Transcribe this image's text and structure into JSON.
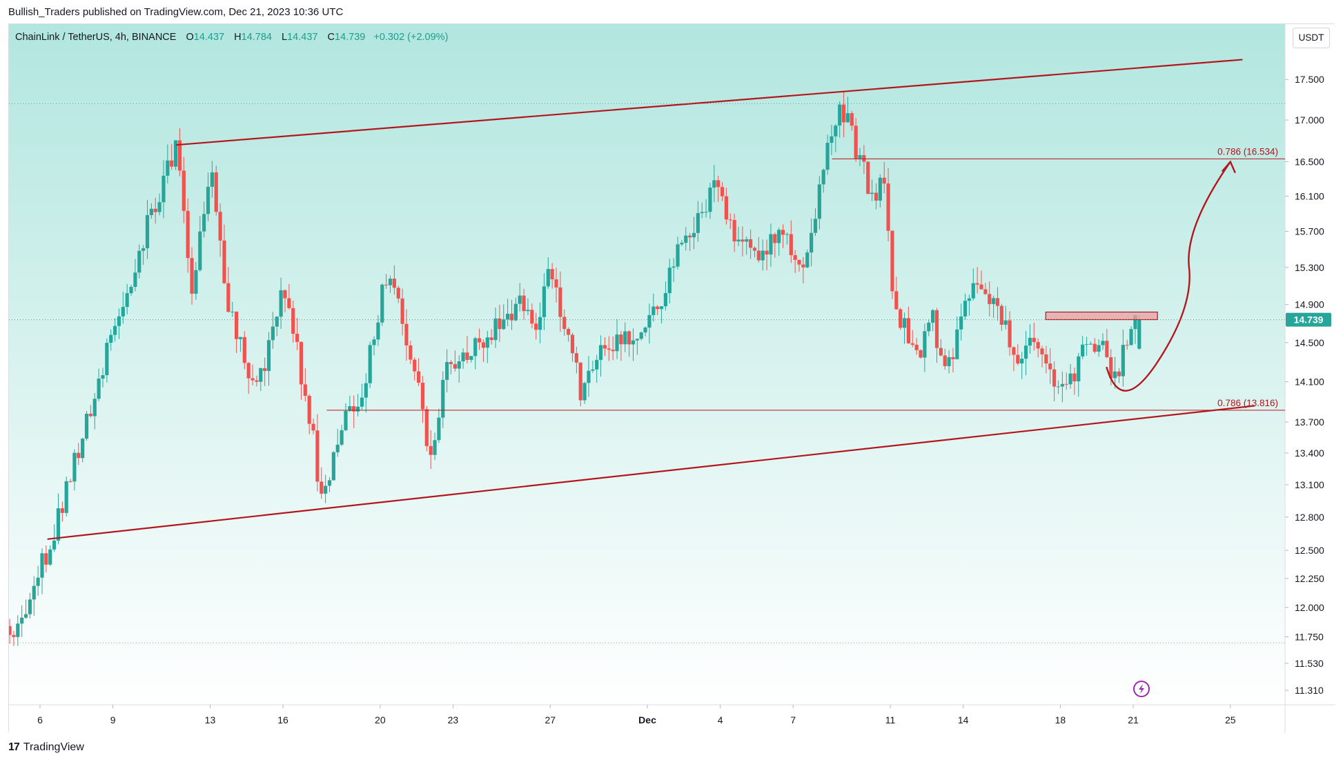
{
  "header": {
    "published_text": "Bullish_Traders published on TradingView.com, Dec 21, 2023 10:36 UTC"
  },
  "legend": {
    "symbol": "ChainLink / TetherUS, 4h, BINANCE",
    "open_label": "O",
    "open_value": "14.437",
    "high_label": "H",
    "high_value": "14.784",
    "low_label": "L",
    "low_value": "14.437",
    "close_label": "C",
    "close_value": "14.739",
    "change": "+0.302 (+2.09%)"
  },
  "currency_button": "USDT",
  "footer": {
    "logo_mark": "17",
    "logo_text": "TradingView"
  },
  "colors": {
    "up": "#26a69a",
    "down": "#ef5350",
    "drawing": "#b2161c",
    "bg_top": "#b2e6df",
    "bg_bottom": "#ffffff",
    "price_tag": "#26a69a"
  },
  "chart_data": {
    "type": "candlestick",
    "title": "ChainLink / TetherUS, 4h, BINANCE",
    "y_axis": {
      "unit": "USDT",
      "scale": "log",
      "ticks": [
        "17.500",
        "17.000",
        "16.500",
        "16.100",
        "15.700",
        "15.300",
        "14.900",
        "14.500",
        "14.100",
        "13.700",
        "13.400",
        "13.100",
        "12.800",
        "12.500",
        "12.250",
        "12.000",
        "11.750",
        "11.530",
        "11.310"
      ],
      "range": [
        11.25,
        18.1
      ]
    },
    "x_axis": {
      "range_days": [
        4.72,
        57.25
      ],
      "ticks": [
        {
          "day": 6,
          "label": "6"
        },
        {
          "day": 9,
          "label": "9"
        },
        {
          "day": 13,
          "label": "13"
        },
        {
          "day": 16,
          "label": "16"
        },
        {
          "day": 20,
          "label": "20"
        },
        {
          "day": 23,
          "label": "23"
        },
        {
          "day": 27,
          "label": "27"
        },
        {
          "day": 31,
          "label": "Dec"
        },
        {
          "day": 34,
          "label": "4"
        },
        {
          "day": 37,
          "label": "7"
        },
        {
          "day": 41,
          "label": "11"
        },
        {
          "day": 44,
          "label": "14"
        },
        {
          "day": 48,
          "label": "18"
        },
        {
          "day": 51,
          "label": "21"
        },
        {
          "day": 55,
          "label": "25"
        }
      ],
      "note": "day index counted from Nov 0 (Dec 1 = day 31)"
    },
    "anchors": [
      {
        "day": 4.75,
        "price": 11.7,
        "note": "start low"
      },
      {
        "day": 6.5,
        "price": 12.6
      },
      {
        "day": 11.6,
        "price": 16.7,
        "note": "Nov 11 high"
      },
      {
        "day": 12.3,
        "price": 15.0
      },
      {
        "day": 13.0,
        "price": 16.4
      },
      {
        "day": 13.7,
        "price": 15.0
      },
      {
        "day": 14.7,
        "price": 14.0
      },
      {
        "day": 15.2,
        "price": 14.2
      },
      {
        "day": 16.0,
        "price": 15.2
      },
      {
        "day": 17.2,
        "price": 13.6
      },
      {
        "day": 17.6,
        "price": 12.9,
        "note": "Nov 17 low"
      },
      {
        "day": 18.5,
        "price": 13.7
      },
      {
        "day": 19.4,
        "price": 14.1
      },
      {
        "day": 20.2,
        "price": 15.2
      },
      {
        "day": 20.8,
        "price": 14.9
      },
      {
        "day": 21.6,
        "price": 14.0
      },
      {
        "day": 22.0,
        "price": 13.3
      },
      {
        "day": 22.7,
        "price": 14.2
      },
      {
        "day": 24.5,
        "price": 14.6
      },
      {
        "day": 25.6,
        "price": 14.9
      },
      {
        "day": 26.5,
        "price": 14.7
      },
      {
        "day": 27.0,
        "price": 15.3
      },
      {
        "day": 28.3,
        "price": 13.95
      },
      {
        "day": 29.0,
        "price": 14.4
      },
      {
        "day": 30.5,
        "price": 14.6
      },
      {
        "day": 31.6,
        "price": 15.0
      },
      {
        "day": 32.5,
        "price": 15.6
      },
      {
        "day": 33.8,
        "price": 16.2
      },
      {
        "day": 34.7,
        "price": 15.6
      },
      {
        "day": 35.6,
        "price": 15.45
      },
      {
        "day": 36.5,
        "price": 15.8
      },
      {
        "day": 37.3,
        "price": 15.3
      },
      {
        "day": 37.9,
        "price": 15.8
      },
      {
        "day": 38.5,
        "price": 16.8
      },
      {
        "day": 39.0,
        "price": 17.2,
        "note": "Dec 8 high"
      },
      {
        "day": 39.5,
        "price": 16.7
      },
      {
        "day": 40.3,
        "price": 16.1
      },
      {
        "day": 40.7,
        "price": 16.4
      },
      {
        "day": 41.0,
        "price": 15.3
      },
      {
        "day": 41.4,
        "price": 14.7
      },
      {
        "day": 42.2,
        "price": 14.4
      },
      {
        "day": 42.7,
        "price": 14.8
      },
      {
        "day": 43.3,
        "price": 14.1
      },
      {
        "day": 43.9,
        "price": 14.8
      },
      {
        "day": 44.6,
        "price": 15.2
      },
      {
        "day": 45.4,
        "price": 14.9
      },
      {
        "day": 46.2,
        "price": 14.3
      },
      {
        "day": 47.0,
        "price": 14.5
      },
      {
        "day": 47.6,
        "price": 14.2
      },
      {
        "day": 48.1,
        "price": 13.95
      },
      {
        "day": 48.6,
        "price": 14.2
      },
      {
        "day": 49.2,
        "price": 14.6
      },
      {
        "day": 49.8,
        "price": 14.4
      },
      {
        "day": 50.2,
        "price": 14.05
      },
      {
        "day": 50.8,
        "price": 14.6
      },
      {
        "day": 51.25,
        "price": 14.739,
        "note": "last close"
      }
    ],
    "annotations": [
      {
        "type": "trendline",
        "name": "upper-channel",
        "points": [
          [
            11.6,
            16.7
          ],
          [
            55.5,
            17.75
          ]
        ]
      },
      {
        "type": "trendline",
        "name": "lower-channel",
        "points": [
          [
            6.3,
            12.6
          ],
          [
            56.0,
            13.86
          ]
        ]
      },
      {
        "type": "hline",
        "name": "fib-upper",
        "price": 16.534,
        "from_day": 38.6,
        "label": "0.786 (16.534)"
      },
      {
        "type": "hline",
        "name": "fib-lower",
        "price": 13.816,
        "from_day": 17.8,
        "label": "0.786 (13.816)"
      },
      {
        "type": "rect",
        "name": "resistance-zone",
        "from_day": 47.4,
        "to_day": 52.0,
        "price_top": 14.82,
        "price_bottom": 14.74
      },
      {
        "type": "arrow-path",
        "name": "cup-projection",
        "points": [
          [
            49.9,
            14.25
          ],
          [
            50.8,
            13.9
          ],
          [
            52.0,
            14.3
          ],
          [
            53.3,
            15.3
          ],
          [
            55.0,
            16.5
          ]
        ]
      },
      {
        "type": "hline",
        "name": "last-price-line",
        "price": 14.739,
        "label": "14.739"
      }
    ]
  }
}
